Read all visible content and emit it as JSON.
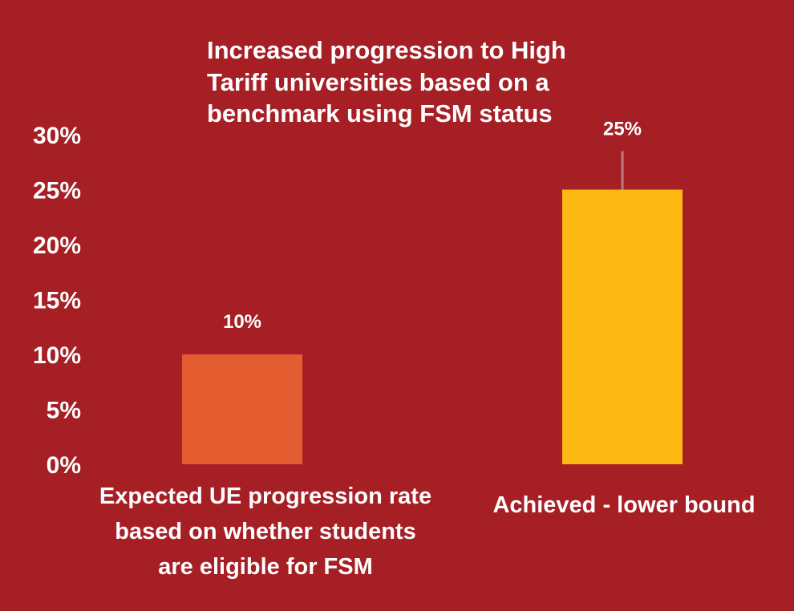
{
  "chart_data": {
    "type": "bar",
    "title_lines": [
      "Increased progression to High",
      "Tariff universities based on a",
      "benchmark using FSM status"
    ],
    "categories": [
      [
        "Expected UE progression rate",
        "based on whether students",
        "are eligible for FSM"
      ],
      [
        "Achieved - lower bound"
      ]
    ],
    "values": [
      10,
      25
    ],
    "data_labels": [
      "10%",
      "25%"
    ],
    "error_bar_upper": [
      null,
      28.5
    ],
    "bar_colors": [
      "#e35d30",
      "#fdb913"
    ],
    "error_bar_color": "#c07c80",
    "ylim": [
      0,
      30
    ],
    "yticks": [
      0,
      5,
      10,
      15,
      20,
      25,
      30
    ],
    "ytick_labels": [
      "0%",
      "5%",
      "10%",
      "15%",
      "20%",
      "25%",
      "30%"
    ],
    "grid": false,
    "legend": "none"
  },
  "colors": {
    "background": "#a51f25",
    "text": "#ffffff"
  }
}
